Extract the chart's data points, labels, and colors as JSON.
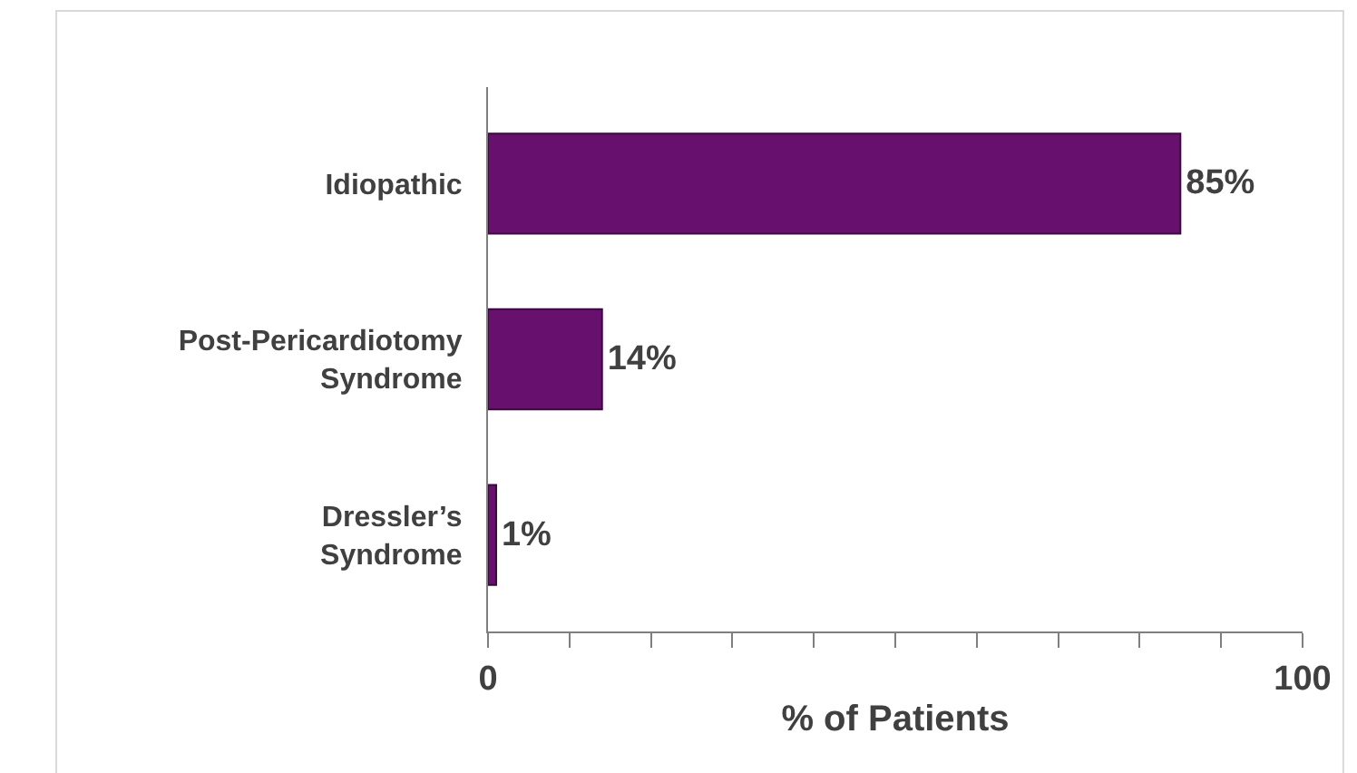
{
  "chart_data": {
    "type": "bar",
    "orientation": "horizontal",
    "categories": [
      "Idiopathic",
      "Post-Pericardiotomy\nSyndrome",
      "Dressler’s\nSyndrome"
    ],
    "values": [
      85,
      14,
      1
    ],
    "color": "#68106e",
    "value_labels": [
      "85%",
      "14%",
      "1%"
    ],
    "xlabel": "% of Patients",
    "xlim": [
      0,
      100
    ],
    "xticks": [
      0,
      {
        "value": 10,
        "label": null
      },
      {
        "value": 20,
        "label": null
      },
      {
        "value": 30,
        "label": null
      },
      {
        "value": 40,
        "label": null
      },
      {
        "value": 50,
        "label": null
      },
      {
        "value": 60,
        "label": null
      },
      {
        "value": 70,
        "label": null
      },
      {
        "value": 80,
        "label": null
      },
      {
        "value": 90,
        "label": null
      },
      100
    ],
    "legend": false
  }
}
